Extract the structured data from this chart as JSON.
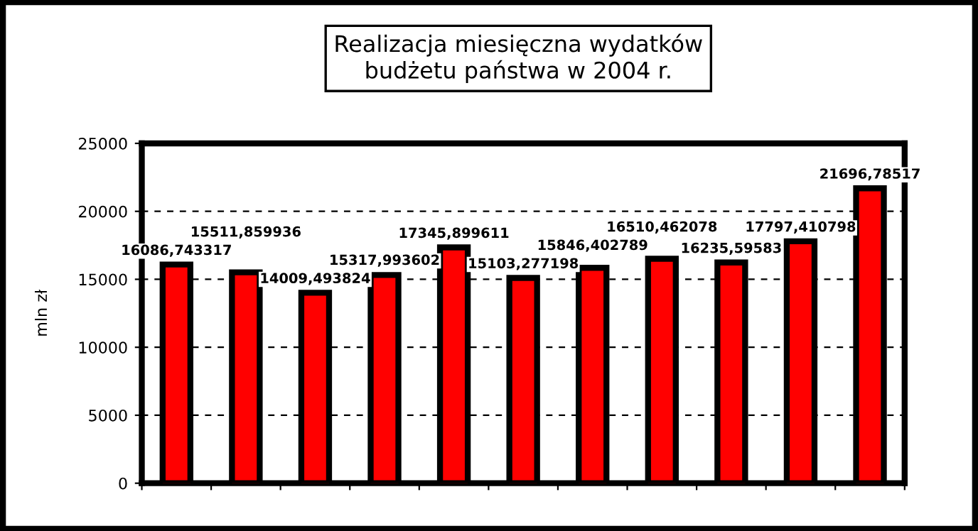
{
  "chart_data": {
    "type": "bar",
    "title": "Realizacja miesięczna wydatków\nbudżetu państwa w 2004 r.",
    "ylabel": "mln zł",
    "categories": [
      null,
      null,
      null,
      null,
      null,
      null,
      null,
      null,
      null,
      null,
      null
    ],
    "values": [
      16086.743317,
      15511.859936,
      14009.493824,
      15317.993602,
      17345.899611,
      15103.277198,
      15846.402789,
      16510.462078,
      16235.59583,
      17797.410798,
      21696.78517
    ],
    "value_labels": [
      "16086,743317",
      "15511,859936",
      "14009,493824",
      "15317,993602",
      "17345,899611",
      "15103,277198",
      "15846,402789",
      "16510,462078",
      "16235,59583",
      "17797,410798",
      "21696,78517"
    ],
    "color": "#ff0000",
    "ylim": [
      0,
      25000
    ],
    "yticks": [
      0,
      5000,
      10000,
      15000,
      20000,
      25000
    ],
    "grid": "y",
    "legend": false
  }
}
